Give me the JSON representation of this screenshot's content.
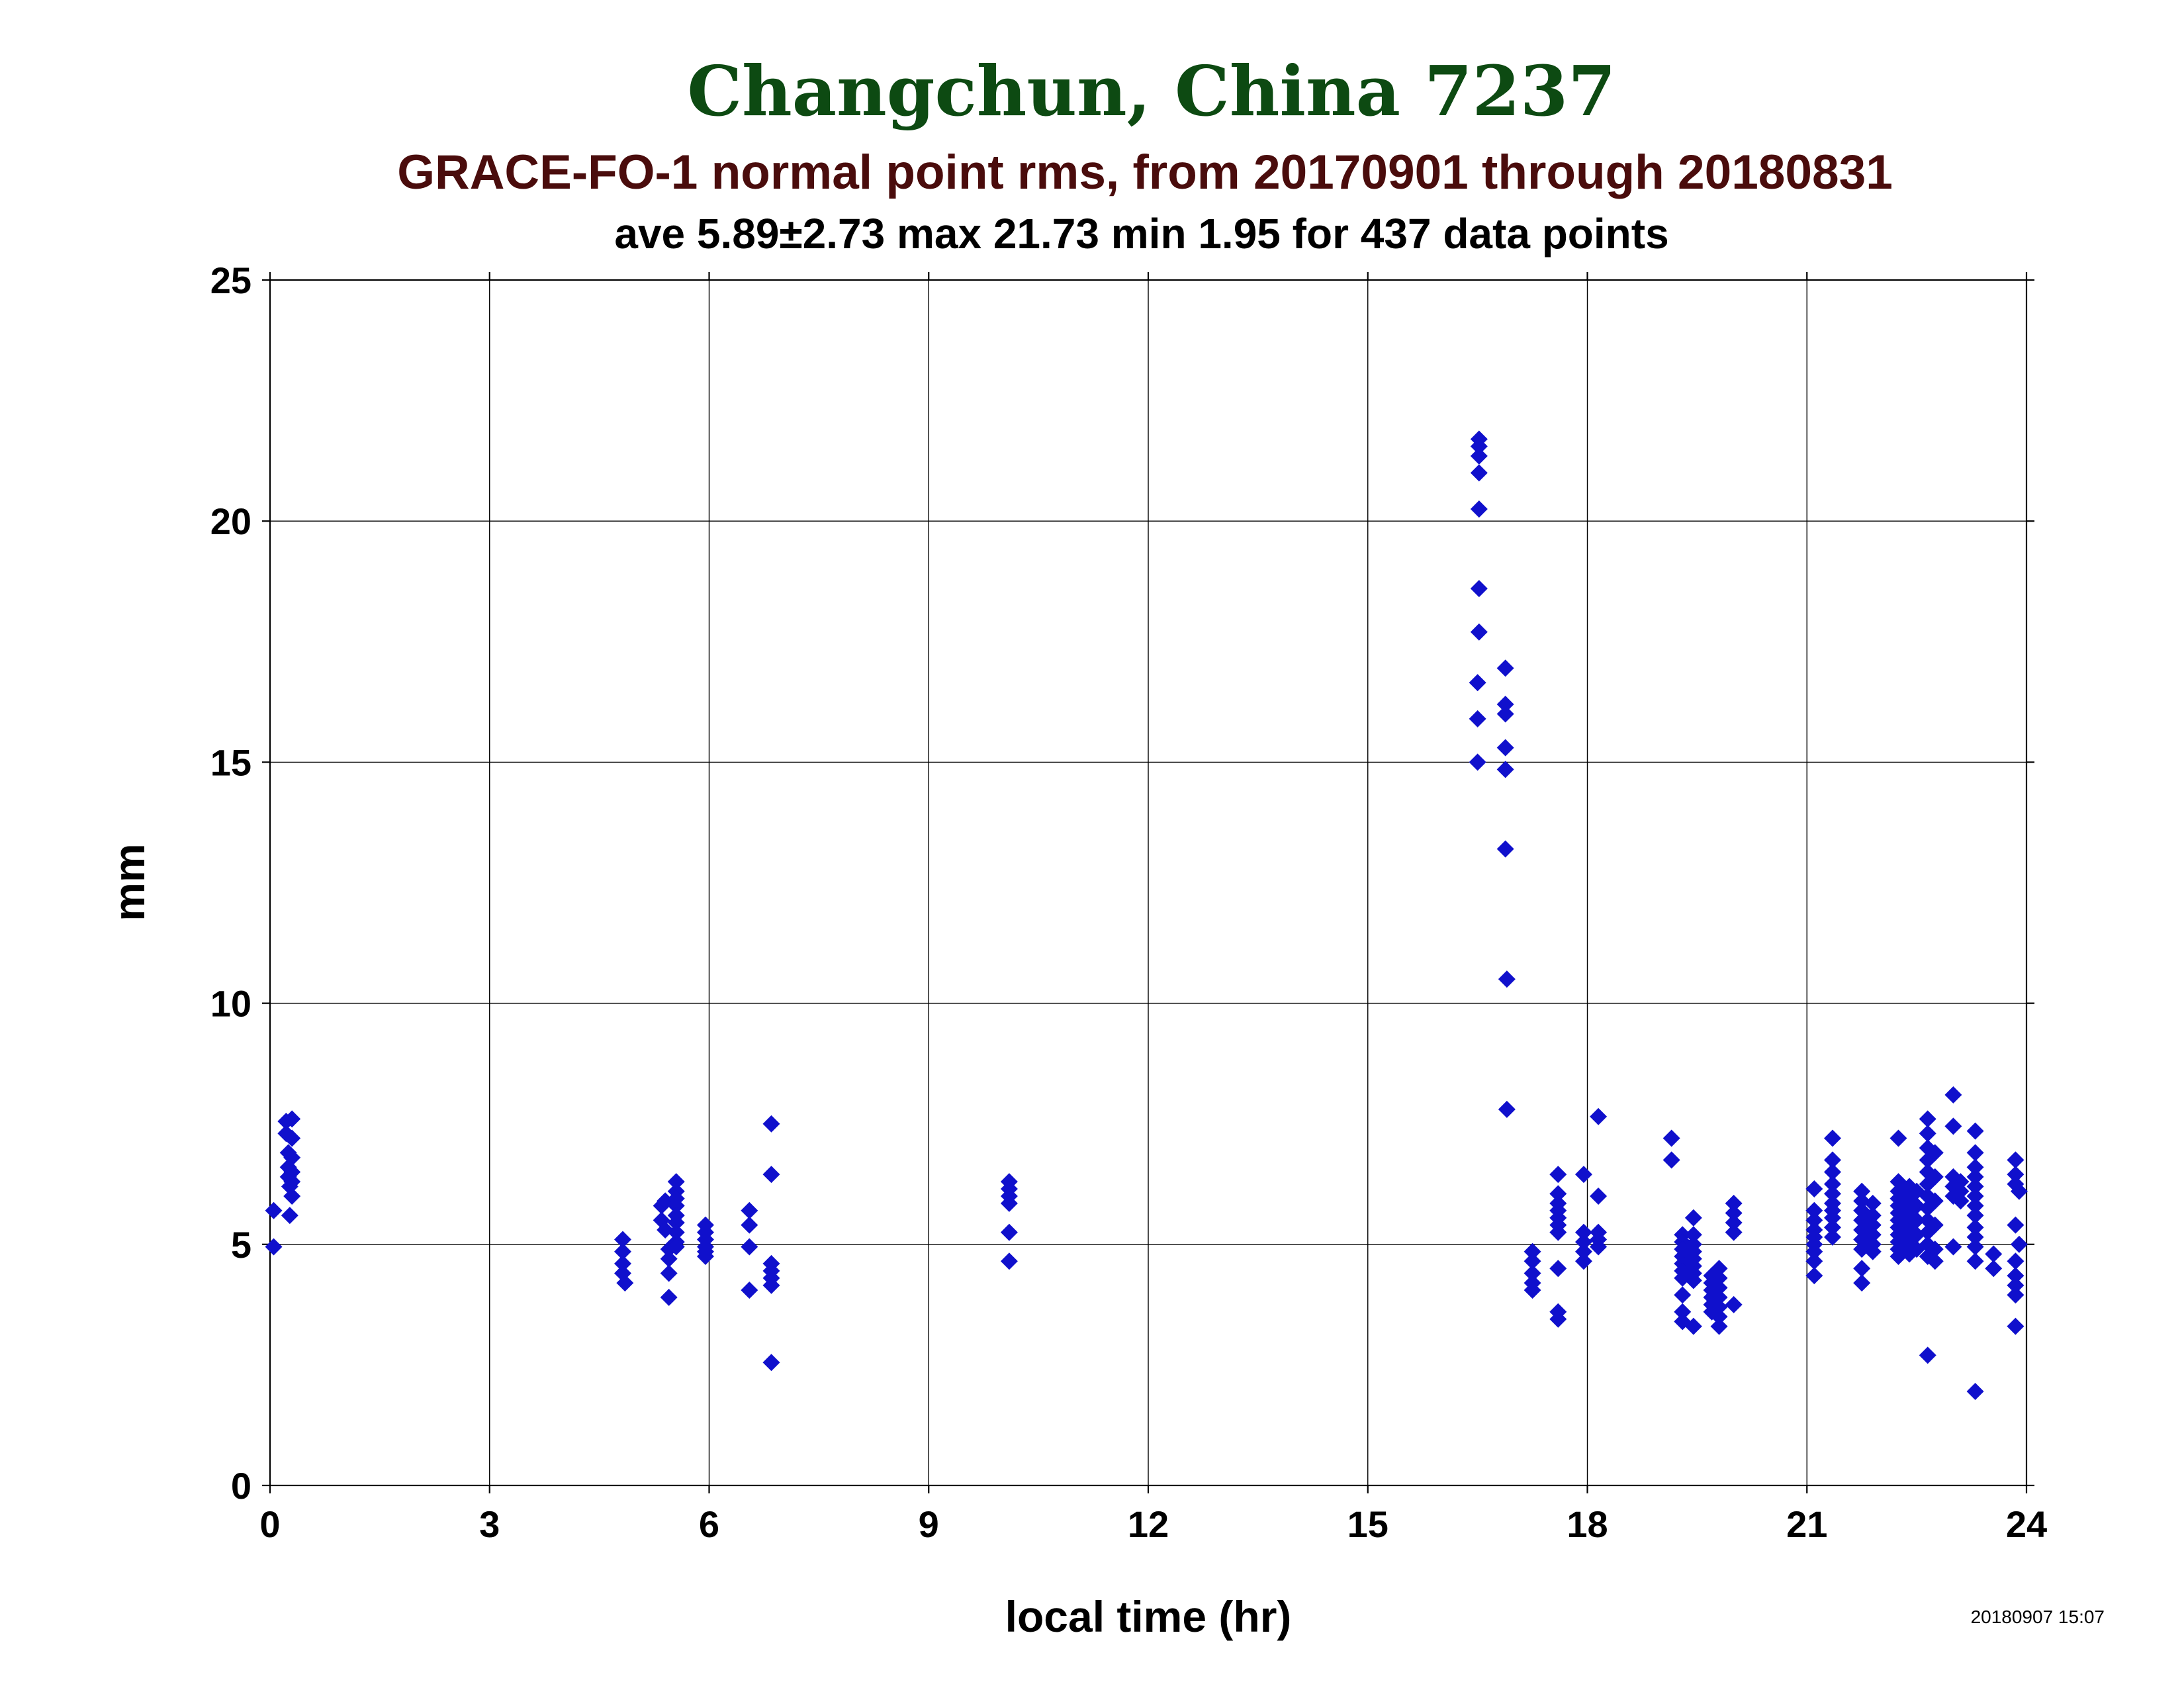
{
  "title": "Changchun, China 7237",
  "subtitle": "GRACE-FO-1 normal point rms, from 20170901 through 20180831",
  "stats": "ave 5.89±2.73 max 21.73 min 1.95 for 437 data points",
  "timestamp": "20180907 15:07",
  "colors": {
    "title": "#0d4a12",
    "subtitle": "#4a0c0c",
    "marker": "#1010cc"
  },
  "chart_data": {
    "type": "scatter",
    "marker": "diamond",
    "xlabel": "local time (hr)",
    "ylabel": "mm",
    "xlim": [
      0,
      24
    ],
    "ylim": [
      0,
      25
    ],
    "xticks": [
      0,
      3,
      6,
      9,
      12,
      15,
      18,
      21,
      24
    ],
    "yticks": [
      0,
      5,
      10,
      15,
      20,
      25
    ],
    "grid": true,
    "points": [
      [
        0.05,
        4.95
      ],
      [
        0.05,
        5.7
      ],
      [
        0.22,
        7.55
      ],
      [
        0.22,
        7.3
      ],
      [
        0.25,
        6.9
      ],
      [
        0.25,
        6.6
      ],
      [
        0.25,
        6.4
      ],
      [
        0.27,
        6.2
      ],
      [
        0.27,
        5.6
      ],
      [
        0.3,
        7.6
      ],
      [
        0.3,
        7.2
      ],
      [
        0.3,
        6.8
      ],
      [
        0.3,
        6.5
      ],
      [
        0.3,
        6.0
      ],
      [
        0.3,
        6.3
      ],
      [
        4.82,
        5.1
      ],
      [
        4.82,
        4.85
      ],
      [
        4.82,
        4.6
      ],
      [
        4.82,
        4.4
      ],
      [
        4.85,
        4.2
      ],
      [
        5.35,
        5.8
      ],
      [
        5.35,
        5.5
      ],
      [
        5.4,
        5.9
      ],
      [
        5.4,
        5.3
      ],
      [
        5.45,
        4.9
      ],
      [
        5.45,
        4.7
      ],
      [
        5.45,
        4.4
      ],
      [
        5.45,
        3.9
      ],
      [
        5.55,
        6.3
      ],
      [
        5.55,
        6.1
      ],
      [
        5.55,
        5.95
      ],
      [
        5.55,
        5.8
      ],
      [
        5.55,
        5.6
      ],
      [
        5.55,
        5.45
      ],
      [
        5.55,
        5.25
      ],
      [
        5.55,
        5.05
      ],
      [
        5.55,
        4.95
      ],
      [
        5.95,
        5.4
      ],
      [
        5.95,
        5.25
      ],
      [
        5.95,
        5.1
      ],
      [
        5.95,
        4.95
      ],
      [
        5.95,
        4.85
      ],
      [
        5.95,
        4.75
      ],
      [
        6.55,
        5.7
      ],
      [
        6.55,
        5.4
      ],
      [
        6.55,
        4.95
      ],
      [
        6.55,
        4.05
      ],
      [
        6.85,
        7.5
      ],
      [
        6.85,
        6.45
      ],
      [
        6.85,
        4.6
      ],
      [
        6.85,
        4.45
      ],
      [
        6.85,
        4.3
      ],
      [
        6.85,
        4.15
      ],
      [
        6.85,
        2.55
      ],
      [
        10.1,
        6.3
      ],
      [
        10.1,
        6.15
      ],
      [
        10.1,
        6.0
      ],
      [
        10.1,
        5.85
      ],
      [
        10.1,
        5.25
      ],
      [
        10.1,
        4.65
      ],
      [
        16.52,
        21.7
      ],
      [
        16.52,
        21.55
      ],
      [
        16.52,
        21.35
      ],
      [
        16.52,
        21.0
      ],
      [
        16.52,
        20.25
      ],
      [
        16.52,
        18.6
      ],
      [
        16.52,
        17.7
      ],
      [
        16.5,
        16.65
      ],
      [
        16.5,
        15.9
      ],
      [
        16.5,
        15.0
      ],
      [
        16.88,
        16.95
      ],
      [
        16.88,
        16.2
      ],
      [
        16.88,
        16.0
      ],
      [
        16.88,
        15.3
      ],
      [
        16.88,
        14.85
      ],
      [
        16.88,
        13.2
      ],
      [
        16.9,
        10.5
      ],
      [
        16.9,
        7.8
      ],
      [
        17.25,
        4.85
      ],
      [
        17.25,
        4.65
      ],
      [
        17.25,
        4.4
      ],
      [
        17.25,
        4.2
      ],
      [
        17.25,
        4.05
      ],
      [
        17.6,
        6.45
      ],
      [
        17.6,
        6.05
      ],
      [
        17.6,
        5.85
      ],
      [
        17.6,
        5.7
      ],
      [
        17.6,
        5.55
      ],
      [
        17.6,
        5.4
      ],
      [
        17.6,
        5.25
      ],
      [
        17.6,
        4.5
      ],
      [
        17.6,
        3.6
      ],
      [
        17.6,
        3.45
      ],
      [
        17.95,
        6.45
      ],
      [
        17.95,
        5.25
      ],
      [
        17.95,
        5.05
      ],
      [
        17.95,
        4.85
      ],
      [
        17.95,
        4.65
      ],
      [
        18.15,
        7.65
      ],
      [
        18.15,
        6.0
      ],
      [
        18.15,
        5.25
      ],
      [
        18.15,
        5.1
      ],
      [
        18.15,
        4.95
      ],
      [
        19.15,
        7.2
      ],
      [
        19.15,
        6.75
      ],
      [
        19.3,
        5.2
      ],
      [
        19.3,
        5.05
      ],
      [
        19.3,
        4.9
      ],
      [
        19.3,
        4.75
      ],
      [
        19.3,
        4.6
      ],
      [
        19.3,
        4.45
      ],
      [
        19.3,
        4.3
      ],
      [
        19.3,
        3.95
      ],
      [
        19.3,
        3.6
      ],
      [
        19.3,
        3.4
      ],
      [
        19.45,
        5.55
      ],
      [
        19.45,
        5.2
      ],
      [
        19.45,
        5.0
      ],
      [
        19.45,
        4.85
      ],
      [
        19.45,
        4.7
      ],
      [
        19.45,
        4.55
      ],
      [
        19.45,
        4.4
      ],
      [
        19.45,
        4.25
      ],
      [
        19.45,
        3.3
      ],
      [
        19.7,
        4.35
      ],
      [
        19.7,
        4.2
      ],
      [
        19.7,
        4.05
      ],
      [
        19.7,
        3.9
      ],
      [
        19.7,
        3.75
      ],
      [
        19.7,
        3.6
      ],
      [
        19.8,
        4.5
      ],
      [
        19.8,
        4.3
      ],
      [
        19.8,
        4.1
      ],
      [
        19.8,
        3.9
      ],
      [
        19.8,
        3.7
      ],
      [
        19.8,
        3.5
      ],
      [
        19.8,
        3.3
      ],
      [
        20.0,
        5.85
      ],
      [
        20.0,
        5.65
      ],
      [
        20.0,
        5.45
      ],
      [
        20.0,
        5.25
      ],
      [
        20.0,
        3.75
      ],
      [
        21.1,
        6.15
      ],
      [
        21.1,
        5.7
      ],
      [
        21.1,
        5.5
      ],
      [
        21.1,
        5.3
      ],
      [
        21.1,
        5.15
      ],
      [
        21.1,
        5.0
      ],
      [
        21.1,
        4.85
      ],
      [
        21.1,
        4.65
      ],
      [
        21.1,
        4.35
      ],
      [
        21.35,
        7.2
      ],
      [
        21.35,
        6.75
      ],
      [
        21.35,
        6.5
      ],
      [
        21.35,
        6.25
      ],
      [
        21.35,
        6.05
      ],
      [
        21.35,
        5.85
      ],
      [
        21.35,
        5.7
      ],
      [
        21.35,
        5.55
      ],
      [
        21.35,
        5.35
      ],
      [
        21.35,
        5.15
      ],
      [
        21.75,
        6.1
      ],
      [
        21.75,
        5.9
      ],
      [
        21.75,
        5.7
      ],
      [
        21.75,
        5.5
      ],
      [
        21.75,
        5.3
      ],
      [
        21.75,
        5.1
      ],
      [
        21.75,
        4.9
      ],
      [
        21.75,
        4.5
      ],
      [
        21.75,
        4.2
      ],
      [
        21.9,
        5.85
      ],
      [
        21.9,
        5.6
      ],
      [
        21.9,
        5.4
      ],
      [
        21.9,
        5.2
      ],
      [
        21.9,
        5.0
      ],
      [
        21.9,
        4.85
      ],
      [
        22.25,
        7.2
      ],
      [
        22.25,
        6.3
      ],
      [
        22.25,
        6.1
      ],
      [
        22.25,
        5.95
      ],
      [
        22.25,
        5.8
      ],
      [
        22.25,
        5.65
      ],
      [
        22.25,
        5.5
      ],
      [
        22.25,
        5.35
      ],
      [
        22.25,
        5.2
      ],
      [
        22.25,
        5.05
      ],
      [
        22.25,
        4.9
      ],
      [
        22.25,
        4.75
      ],
      [
        22.4,
        6.2
      ],
      [
        22.4,
        6.0
      ],
      [
        22.4,
        5.85
      ],
      [
        22.4,
        5.7
      ],
      [
        22.4,
        5.55
      ],
      [
        22.4,
        5.4
      ],
      [
        22.4,
        5.25
      ],
      [
        22.4,
        5.1
      ],
      [
        22.4,
        4.95
      ],
      [
        22.4,
        4.8
      ],
      [
        22.5,
        6.1
      ],
      [
        22.5,
        5.8
      ],
      [
        22.5,
        5.5
      ],
      [
        22.5,
        5.2
      ],
      [
        22.5,
        4.9
      ],
      [
        22.65,
        7.6
      ],
      [
        22.65,
        7.3
      ],
      [
        22.65,
        7.0
      ],
      [
        22.65,
        6.75
      ],
      [
        22.65,
        6.5
      ],
      [
        22.65,
        6.25
      ],
      [
        22.65,
        6.0
      ],
      [
        22.65,
        5.75
      ],
      [
        22.65,
        5.5
      ],
      [
        22.65,
        5.25
      ],
      [
        22.65,
        5.0
      ],
      [
        22.65,
        4.75
      ],
      [
        22.65,
        2.7
      ],
      [
        22.75,
        6.9
      ],
      [
        22.75,
        6.4
      ],
      [
        22.75,
        5.9
      ],
      [
        22.75,
        5.4
      ],
      [
        22.75,
        4.9
      ],
      [
        22.75,
        4.65
      ],
      [
        23.0,
        8.1
      ],
      [
        23.0,
        7.45
      ],
      [
        23.0,
        6.4
      ],
      [
        23.0,
        6.2
      ],
      [
        23.0,
        6.0
      ],
      [
        23.0,
        4.95
      ],
      [
        23.1,
        6.3
      ],
      [
        23.1,
        6.1
      ],
      [
        23.1,
        5.9
      ],
      [
        23.3,
        7.35
      ],
      [
        23.3,
        6.9
      ],
      [
        23.3,
        6.6
      ],
      [
        23.3,
        6.4
      ],
      [
        23.3,
        6.2
      ],
      [
        23.3,
        6.0
      ],
      [
        23.3,
        5.8
      ],
      [
        23.3,
        5.6
      ],
      [
        23.3,
        5.35
      ],
      [
        23.3,
        5.15
      ],
      [
        23.3,
        4.95
      ],
      [
        23.3,
        4.65
      ],
      [
        23.3,
        1.95
      ],
      [
        23.55,
        4.8
      ],
      [
        23.55,
        4.5
      ],
      [
        23.85,
        6.75
      ],
      [
        23.85,
        6.45
      ],
      [
        23.85,
        6.25
      ],
      [
        23.85,
        5.4
      ],
      [
        23.85,
        4.65
      ],
      [
        23.85,
        4.35
      ],
      [
        23.85,
        4.15
      ],
      [
        23.85,
        3.95
      ],
      [
        23.85,
        3.3
      ],
      [
        23.9,
        6.1
      ],
      [
        23.9,
        5.0
      ]
    ]
  }
}
